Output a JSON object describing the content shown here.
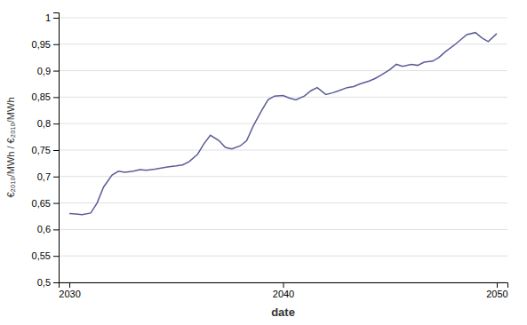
{
  "chart_data": {
    "type": "line",
    "xlabel": "date",
    "ylabel": "€₂₀₁₀/MWh / €₂₀₁₀/MWh",
    "color": "#5c5c99",
    "grid": true,
    "xlim": [
      2029.5,
      2050.5
    ],
    "ylim": [
      0.5,
      1.01
    ],
    "xticks": [
      2030,
      2040,
      2050
    ],
    "yticks": [
      {
        "value": 0.5,
        "label": "0,5"
      },
      {
        "value": 0.55,
        "label": "0,55"
      },
      {
        "value": 0.6,
        "label": "0,6"
      },
      {
        "value": 0.65,
        "label": "0,65"
      },
      {
        "value": 0.7,
        "label": "0,7"
      },
      {
        "value": 0.75,
        "label": "0,75"
      },
      {
        "value": 0.8,
        "label": "0,8"
      },
      {
        "value": 0.85,
        "label": "0,85"
      },
      {
        "value": 0.9,
        "label": "0,9"
      },
      {
        "value": 0.95,
        "label": "0,95"
      },
      1
    ],
    "x": [
      2030,
      2030.3,
      2030.6,
      2031.0,
      2031.3,
      2031.6,
      2032.0,
      2032.3,
      2032.6,
      2033.0,
      2033.3,
      2033.6,
      2034.0,
      2034.3,
      2034.6,
      2035.0,
      2035.3,
      2035.6,
      2036.0,
      2036.3,
      2036.6,
      2037.0,
      2037.3,
      2037.6,
      2038.0,
      2038.3,
      2038.6,
      2039.0,
      2039.3,
      2039.6,
      2040.0,
      2040.3,
      2040.6,
      2041.0,
      2041.3,
      2041.6,
      2042.0,
      2042.3,
      2042.6,
      2043.0,
      2043.3,
      2043.6,
      2044.0,
      2044.3,
      2044.6,
      2045.0,
      2045.3,
      2045.6,
      2046.0,
      2046.3,
      2046.6,
      2047.0,
      2047.3,
      2047.6,
      2048.0,
      2048.3,
      2048.6,
      2049.0,
      2049.3,
      2049.6,
      2050.0
    ],
    "values": [
      0.63,
      0.629,
      0.628,
      0.631,
      0.65,
      0.68,
      0.703,
      0.71,
      0.708,
      0.71,
      0.713,
      0.712,
      0.714,
      0.716,
      0.718,
      0.72,
      0.722,
      0.728,
      0.742,
      0.762,
      0.778,
      0.768,
      0.755,
      0.752,
      0.758,
      0.768,
      0.795,
      0.825,
      0.845,
      0.852,
      0.853,
      0.848,
      0.845,
      0.852,
      0.862,
      0.868,
      0.855,
      0.858,
      0.862,
      0.868,
      0.87,
      0.875,
      0.88,
      0.885,
      0.892,
      0.902,
      0.912,
      0.908,
      0.912,
      0.91,
      0.916,
      0.918,
      0.925,
      0.936,
      0.948,
      0.958,
      0.968,
      0.972,
      0.962,
      0.955,
      0.97
    ]
  }
}
